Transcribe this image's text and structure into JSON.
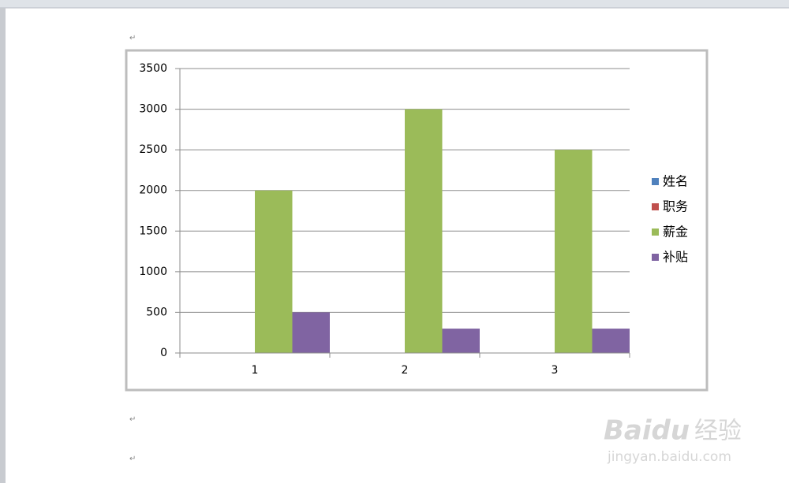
{
  "chart_data": {
    "type": "bar",
    "categories": [
      "1",
      "2",
      "3"
    ],
    "series": [
      {
        "name": "姓名",
        "color": "#4f81bd",
        "values": [
          null,
          null,
          null
        ]
      },
      {
        "name": "职务",
        "color": "#c0504d",
        "values": [
          null,
          null,
          null
        ]
      },
      {
        "name": "薪金",
        "color": "#9bbb59",
        "values": [
          2000,
          3000,
          2500
        ]
      },
      {
        "name": "补贴",
        "color": "#8064a2",
        "values": [
          500,
          300,
          300
        ]
      }
    ],
    "ylim": [
      0,
      3500
    ],
    "yticks": [
      0,
      500,
      1000,
      1500,
      2000,
      2500,
      3000,
      3500
    ],
    "grid": true,
    "legend": "right"
  },
  "document": {
    "paragraph_marks": [
      "↵",
      "↵",
      "↵"
    ]
  },
  "watermark": {
    "logo": "Baidu",
    "label": "经验",
    "url": "jingyan.baidu.com"
  }
}
